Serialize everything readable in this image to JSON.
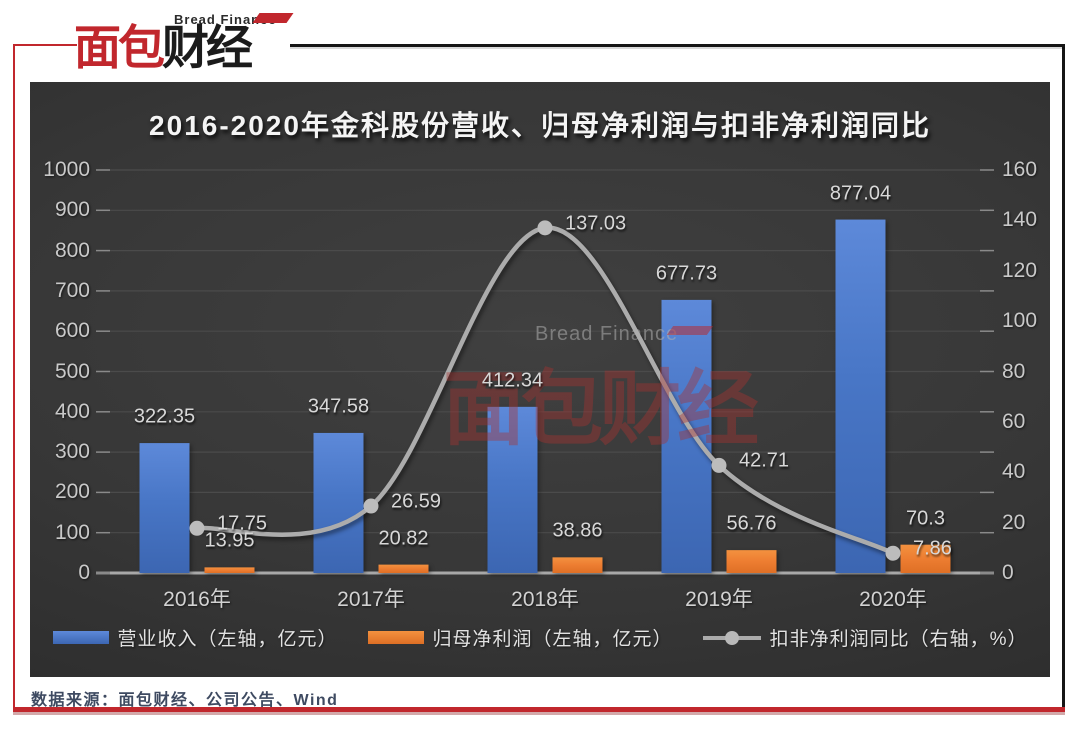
{
  "logo": {
    "brand_en": "Bread Finance",
    "brand_zh_left": "面包",
    "brand_zh_right": "财经"
  },
  "watermark": {
    "en": "Bread Finance",
    "zh": "面包财经"
  },
  "source_note": "数据来源：面包财经、公司公告、Wind",
  "colors": {
    "accent_red": "#C1272D",
    "bar_blue": "#4472C4",
    "bar_orange": "#ED7D31",
    "line_gray": "#ACACAC",
    "panel_bg_dark": "#2b2b2b"
  },
  "chart_data": {
    "type": "bar",
    "subtype": "combo-bar-line",
    "title": "2016-2020年金科股份营收、归母净利润与扣非净利润同比",
    "categories": [
      "2016年",
      "2017年",
      "2018年",
      "2019年",
      "2020年"
    ],
    "series": [
      {
        "name": "营业收入（左轴，亿元）",
        "type": "bar",
        "axis": "left",
        "color": "#4472C4",
        "values": [
          322.35,
          347.58,
          412.34,
          677.73,
          877.04
        ]
      },
      {
        "name": "归母净利润（左轴，亿元）",
        "type": "bar",
        "axis": "left",
        "color": "#ED7D31",
        "values": [
          13.95,
          20.82,
          38.86,
          56.76,
          70.3
        ]
      },
      {
        "name": "扣非净利润同比（右轴，%）",
        "type": "line",
        "axis": "right",
        "color": "#ACACAC",
        "values": [
          17.75,
          26.59,
          137.03,
          42.71,
          7.86
        ]
      }
    ],
    "left_axis": {
      "min": 0,
      "max": 1000,
      "step": 100
    },
    "right_axis": {
      "min": 0,
      "max": 160,
      "step": 20
    },
    "legend_position": "bottom",
    "grid": true,
    "background": "dark-gradient"
  }
}
